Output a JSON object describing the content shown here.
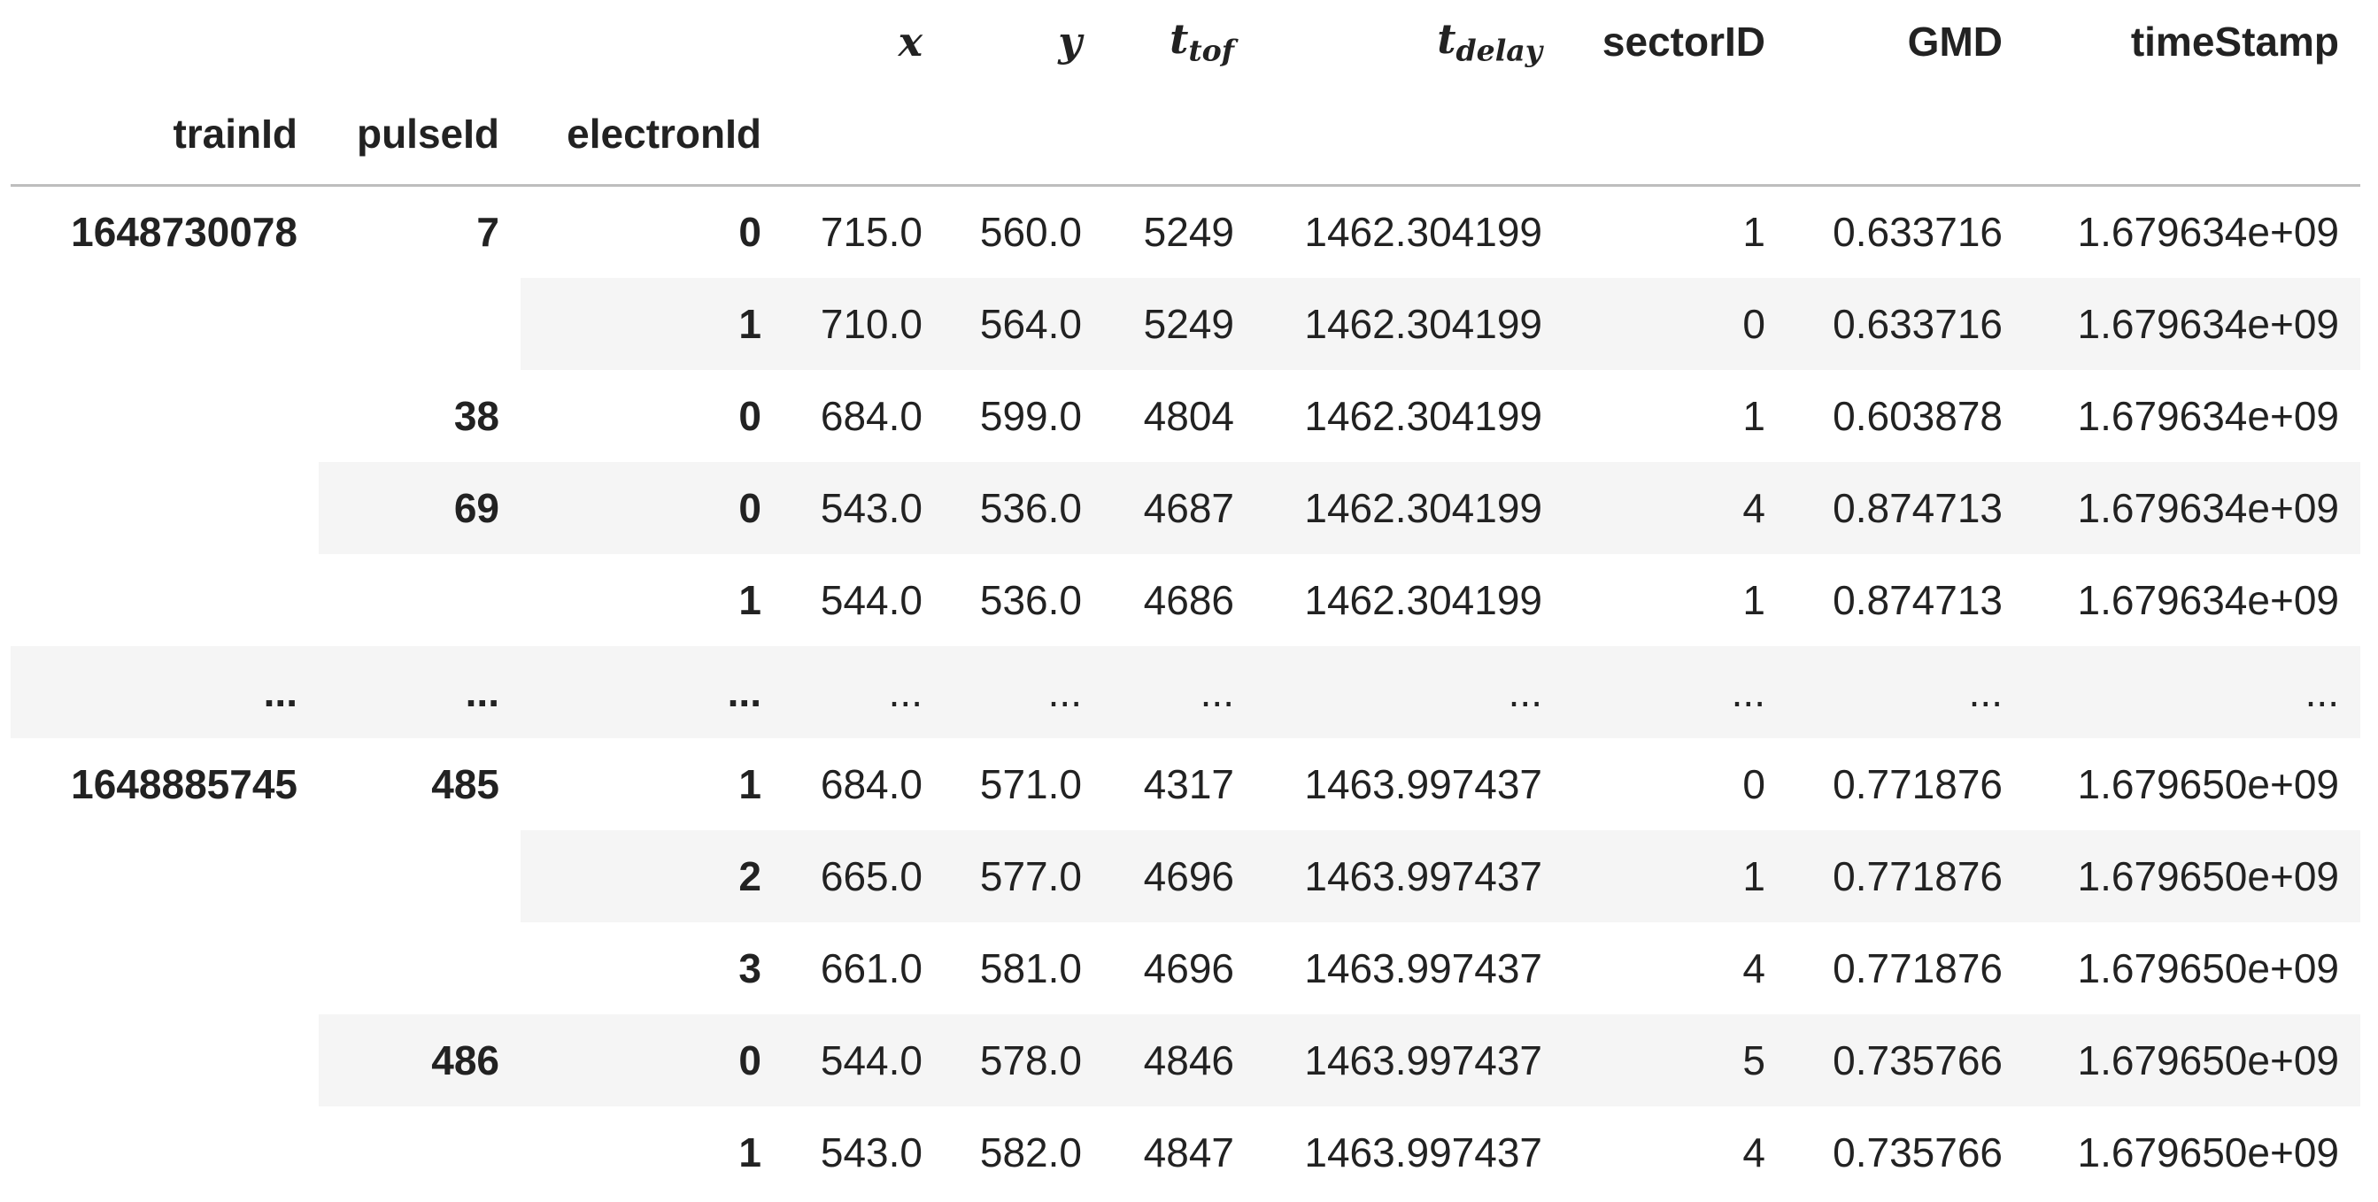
{
  "table": {
    "value_headers": [
      {
        "base": "x",
        "sub": ""
      },
      {
        "base": "y",
        "sub": ""
      },
      {
        "base": "t",
        "sub": "tof"
      },
      {
        "base": "t",
        "sub": "delay"
      },
      {
        "base": "sectorID",
        "sub": ""
      },
      {
        "base": "GMD",
        "sub": ""
      },
      {
        "base": "timeStamp",
        "sub": ""
      }
    ],
    "index_headers": [
      "trainId",
      "pulseId",
      "electronId"
    ],
    "rows": [
      {
        "trainId": "1648730078",
        "pulseId": "7",
        "electronId": "0",
        "values": [
          "715.0",
          "560.0",
          "5249",
          "1462.304199",
          "1",
          "0.633716",
          "1.679634e+09"
        ]
      },
      {
        "trainId": "",
        "pulseId": "",
        "electronId": "1",
        "values": [
          "710.0",
          "564.0",
          "5249",
          "1462.304199",
          "0",
          "0.633716",
          "1.679634e+09"
        ]
      },
      {
        "trainId": "",
        "pulseId": "38",
        "electronId": "0",
        "values": [
          "684.0",
          "599.0",
          "4804",
          "1462.304199",
          "1",
          "0.603878",
          "1.679634e+09"
        ]
      },
      {
        "trainId": "",
        "pulseId": "69",
        "electronId": "0",
        "values": [
          "543.0",
          "536.0",
          "4687",
          "1462.304199",
          "4",
          "0.874713",
          "1.679634e+09"
        ]
      },
      {
        "trainId": "",
        "pulseId": "",
        "electronId": "1",
        "values": [
          "544.0",
          "536.0",
          "4686",
          "1462.304199",
          "1",
          "0.874713",
          "1.679634e+09"
        ]
      },
      {
        "trainId": "...",
        "pulseId": "...",
        "electronId": "...",
        "values": [
          "...",
          "...",
          "...",
          "...",
          "...",
          "...",
          "..."
        ]
      },
      {
        "trainId": "1648885745",
        "pulseId": "485",
        "electronId": "1",
        "values": [
          "684.0",
          "571.0",
          "4317",
          "1463.997437",
          "0",
          "0.771876",
          "1.679650e+09"
        ]
      },
      {
        "trainId": "",
        "pulseId": "",
        "electronId": "2",
        "values": [
          "665.0",
          "577.0",
          "4696",
          "1463.997437",
          "1",
          "0.771876",
          "1.679650e+09"
        ]
      },
      {
        "trainId": "",
        "pulseId": "",
        "electronId": "3",
        "values": [
          "661.0",
          "581.0",
          "4696",
          "1463.997437",
          "4",
          "0.771876",
          "1.679650e+09"
        ]
      },
      {
        "trainId": "",
        "pulseId": "486",
        "electronId": "0",
        "values": [
          "544.0",
          "578.0",
          "4846",
          "1463.997437",
          "5",
          "0.735766",
          "1.679650e+09"
        ]
      },
      {
        "trainId": "",
        "pulseId": "",
        "electronId": "1",
        "values": [
          "543.0",
          "582.0",
          "4847",
          "1463.997437",
          "4",
          "0.735766",
          "1.679650e+09"
        ]
      }
    ]
  }
}
